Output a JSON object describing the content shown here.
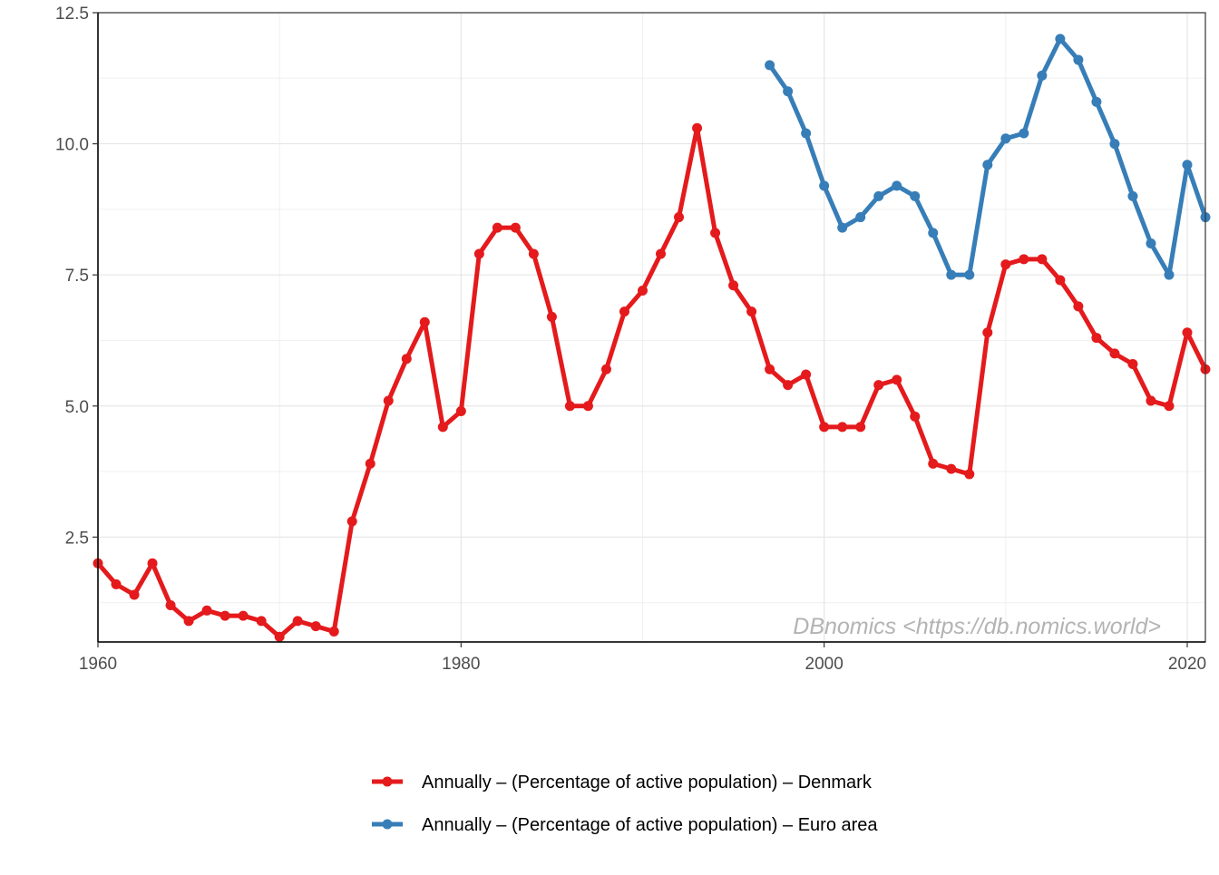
{
  "watermark": "DBnomics <https://db.nomics.world>",
  "chart_data": {
    "type": "line",
    "title": "",
    "xlabel": "",
    "ylabel": "",
    "xlim": [
      1960,
      2021
    ],
    "ylim": [
      0.5,
      12.5
    ],
    "grid": true,
    "legend_position": "bottom",
    "x_ticks": [
      1960,
      1980,
      2000,
      2020
    ],
    "x_tick_labels": [
      "1960",
      "1980",
      "2000",
      "2020"
    ],
    "y_ticks": [
      2.5,
      5.0,
      7.5,
      10.0,
      12.5
    ],
    "y_tick_labels": [
      "2.5",
      "5.0",
      "7.5",
      "10.0",
      "12.5"
    ],
    "series": [
      {
        "name": "Annually – (Percentage of active population) – Denmark",
        "color": "#e41a1c",
        "x": [
          1960,
          1961,
          1962,
          1963,
          1964,
          1965,
          1966,
          1967,
          1968,
          1969,
          1970,
          1971,
          1972,
          1973,
          1974,
          1975,
          1976,
          1977,
          1978,
          1979,
          1980,
          1981,
          1982,
          1983,
          1984,
          1985,
          1986,
          1987,
          1988,
          1989,
          1990,
          1991,
          1992,
          1993,
          1994,
          1995,
          1996,
          1997,
          1998,
          1999,
          2000,
          2001,
          2002,
          2003,
          2004,
          2005,
          2006,
          2007,
          2008,
          2009,
          2010,
          2011,
          2012,
          2013,
          2014,
          2015,
          2016,
          2017,
          2018,
          2019,
          2020,
          2021
        ],
        "y": [
          2.0,
          1.6,
          1.4,
          2.0,
          1.2,
          0.9,
          1.1,
          1.0,
          1.0,
          0.9,
          0.6,
          0.9,
          0.8,
          0.7,
          2.8,
          3.9,
          5.1,
          5.9,
          6.6,
          4.6,
          4.9,
          7.9,
          8.4,
          8.4,
          7.9,
          6.7,
          5.0,
          5.0,
          5.7,
          6.8,
          7.2,
          7.9,
          8.6,
          10.3,
          8.3,
          7.3,
          6.8,
          5.7,
          5.4,
          5.6,
          4.6,
          4.6,
          4.6,
          5.4,
          5.5,
          4.8,
          3.9,
          3.8,
          3.7,
          6.4,
          7.7,
          7.8,
          7.8,
          7.4,
          6.9,
          6.3,
          6.0,
          5.8,
          5.1,
          5.0,
          6.4,
          5.7
        ]
      },
      {
        "name": "Annually – (Percentage of active population) – Euro area",
        "color": "#377eb8",
        "x": [
          1997,
          1998,
          1999,
          2000,
          2001,
          2002,
          2003,
          2004,
          2005,
          2006,
          2007,
          2008,
          2009,
          2010,
          2011,
          2012,
          2013,
          2014,
          2015,
          2016,
          2017,
          2018,
          2019,
          2020,
          2021
        ],
        "y": [
          11.5,
          11.0,
          10.2,
          9.2,
          8.4,
          8.6,
          9.0,
          9.2,
          9.0,
          8.3,
          7.5,
          7.5,
          9.6,
          10.1,
          10.2,
          11.3,
          12.0,
          11.6,
          10.8,
          10.0,
          9.0,
          8.1,
          7.5,
          9.6,
          8.6
        ]
      }
    ]
  }
}
